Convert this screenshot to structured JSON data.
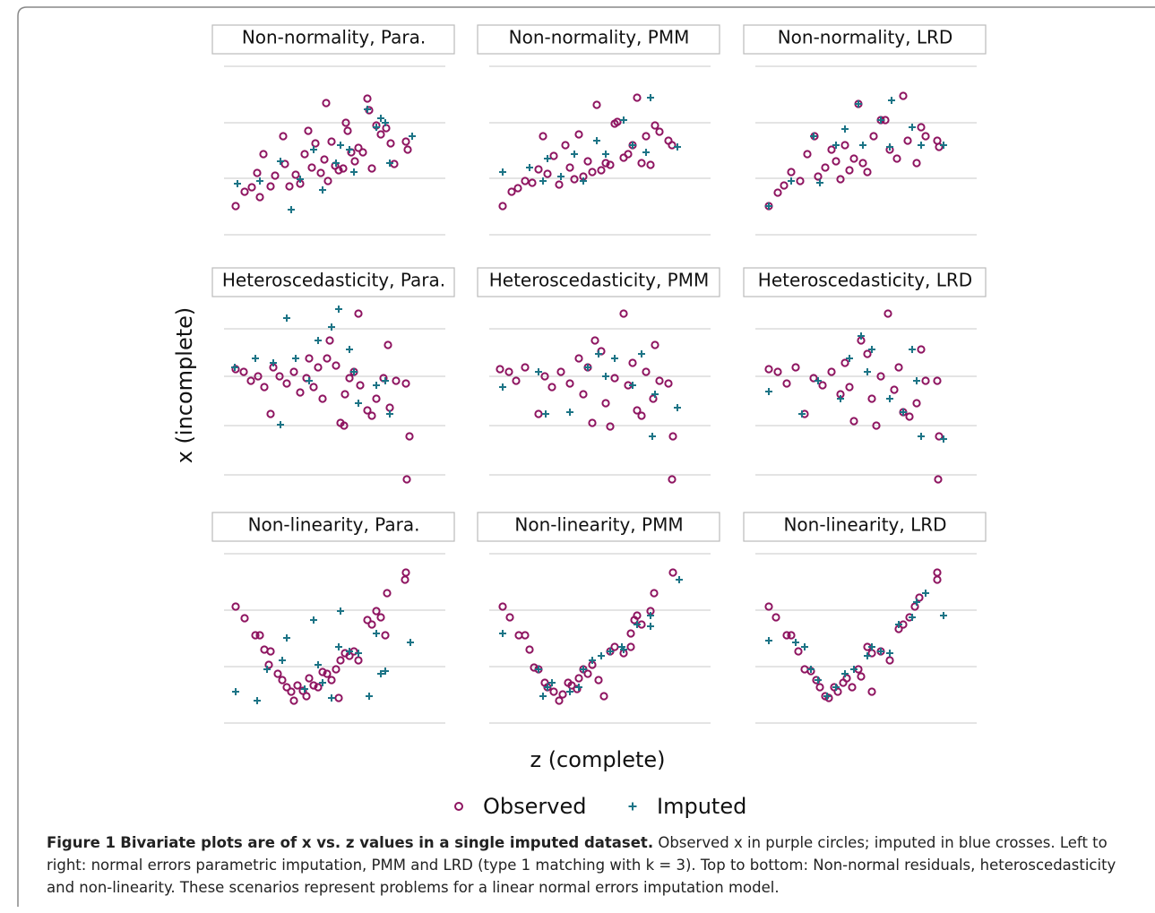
{
  "figure": {
    "y_label": "x (incomplete)",
    "x_label": "z (complete)",
    "legend": [
      {
        "name": "Observed",
        "color": "#8e1460",
        "marker": "circle"
      },
      {
        "name": "Imputed",
        "color": "#1c7486",
        "marker": "plus"
      }
    ],
    "caption": {
      "label": "Figure 1",
      "title": "Bivariate plots are of x vs. z values in a single imputed dataset.",
      "text": "Observed x in purple circles; imputed in blue crosses. Left to right: normal errors parametric imputation, PMM and LRD (type 1 matching with k = 3). Top to bottom: Non-normal residuals, heteroscedasticity and non-linearity. These scenarios represent problems for a linear normal errors imputation model."
    }
  },
  "chart_data": [
    {
      "type": "scatter",
      "title": "Non-normality, Para.",
      "xlim": [
        0,
        247
      ],
      "ylim": [
        0,
        188
      ],
      "yticks": [
        0,
        63,
        125,
        188
      ],
      "grid": true,
      "series": [
        {
          "x": [
            13,
            23,
            31,
            37,
            40,
            44,
            52,
            57,
            66,
            68,
            73,
            80,
            85,
            90,
            94,
            98,
            102,
            108,
            112,
            114,
            116,
            120,
            124,
            128,
            133,
            136,
            138,
            142,
            146,
            150,
            155,
            160,
            162,
            165,
            170,
            175,
            181,
            186,
            190,
            203,
            205
          ],
          "values": [
            32,
            48,
            53,
            69,
            42,
            90,
            54,
            66,
            110,
            79,
            54,
            67,
            57,
            90,
            116,
            75,
            102,
            69,
            84,
            147,
            60,
            104,
            77,
            72,
            74,
            125,
            116,
            92,
            82,
            97,
            92,
            152,
            139,
            74,
            122,
            112,
            119,
            102,
            79,
            104,
            95
          ]
        },
        {
          "x": [
            15,
            40,
            63,
            75,
            85,
            100,
            110,
            125,
            130,
            145,
            160,
            170,
            180,
            185,
            210,
            175,
            140
          ],
          "values": [
            57,
            60,
            82,
            28,
            62,
            95,
            50,
            80,
            100,
            70,
            140,
            120,
            125,
            80,
            110,
            130,
            95
          ]
        }
      ]
    },
    {
      "type": "scatter",
      "title": "Non-normality, PMM",
      "xlim": [
        0,
        247
      ],
      "ylim": [
        0,
        188
      ],
      "yticks": [
        0,
        63,
        125,
        188
      ],
      "grid": true,
      "series": [
        {
          "x": [
            15,
            25,
            32,
            40,
            48,
            55,
            60,
            65,
            72,
            78,
            85,
            90,
            95,
            100,
            105,
            110,
            115,
            120,
            125,
            130,
            135,
            140,
            143,
            150,
            155,
            160,
            165,
            170,
            175,
            180,
            185,
            190,
            200,
            204
          ],
          "values": [
            32,
            48,
            52,
            60,
            58,
            73,
            110,
            68,
            88,
            56,
            100,
            75,
            62,
            112,
            65,
            82,
            70,
            145,
            72,
            80,
            78,
            124,
            126,
            86,
            90,
            100,
            153,
            80,
            110,
            78,
            122,
            115,
            105,
            100
          ]
        },
        {
          "x": [
            15,
            45,
            65,
            80,
            95,
            105,
            120,
            130,
            150,
            160,
            180,
            175,
            210,
            60
          ],
          "values": [
            70,
            75,
            85,
            65,
            90,
            60,
            105,
            90,
            128,
            100,
            153,
            92,
            98,
            60
          ]
        }
      ]
    },
    {
      "type": "scatter",
      "title": "Non-normality, LRD",
      "xlim": [
        0,
        247
      ],
      "ylim": [
        0,
        188
      ],
      "yticks": [
        0,
        63,
        125,
        188
      ],
      "grid": true,
      "series": [
        {
          "x": [
            15,
            25,
            32,
            40,
            50,
            58,
            66,
            70,
            78,
            85,
            90,
            95,
            100,
            105,
            110,
            115,
            120,
            125,
            132,
            140,
            145,
            150,
            158,
            165,
            170,
            180,
            185,
            190,
            203,
            205
          ],
          "values": [
            32,
            47,
            55,
            70,
            60,
            90,
            110,
            65,
            75,
            95,
            82,
            62,
            100,
            72,
            85,
            146,
            80,
            70,
            110,
            128,
            128,
            95,
            85,
            155,
            105,
            80,
            120,
            110,
            105,
            98
          ]
        },
        {
          "x": [
            15,
            40,
            65,
            72,
            90,
            100,
            115,
            120,
            140,
            150,
            152,
            175,
            185,
            210
          ],
          "values": [
            32,
            60,
            110,
            58,
            100,
            118,
            146,
            100,
            128,
            98,
            150,
            120,
            100,
            100
          ]
        }
      ]
    },
    {
      "type": "scatter",
      "title": "Heteroscedasticity, Para.",
      "xlim": [
        0,
        247
      ],
      "ylim": [
        0,
        200
      ],
      "yticks": [
        10,
        65,
        120,
        173
      ],
      "grid": true,
      "series": [
        {
          "x": [
            13,
            22,
            30,
            38,
            45,
            52,
            55,
            62,
            70,
            78,
            85,
            92,
            95,
            100,
            105,
            110,
            115,
            118,
            125,
            130,
            134,
            135,
            140,
            145,
            150,
            152,
            160,
            165,
            170,
            178,
            183,
            185,
            192,
            203,
            207,
            204
          ],
          "values": [
            128,
            125,
            115,
            120,
            108,
            78,
            130,
            120,
            112,
            125,
            102,
            118,
            140,
            108,
            130,
            95,
            140,
            160,
            132,
            68,
            65,
            100,
            118,
            125,
            190,
            110,
            82,
            76,
            95,
            118,
            155,
            85,
            115,
            112,
            53,
            5
          ]
        },
        {
          "x": [
            12,
            35,
            55,
            63,
            70,
            80,
            95,
            105,
            120,
            128,
            140,
            150,
            170,
            185,
            180,
            145
          ],
          "values": [
            130,
            140,
            135,
            66,
            185,
            140,
            115,
            160,
            175,
            195,
            150,
            90,
            110,
            78,
            115,
            125
          ]
        }
      ]
    },
    {
      "type": "scatter",
      "title": "Heteroscedasticity, PMM",
      "xlim": [
        0,
        247
      ],
      "ylim": [
        0,
        200
      ],
      "yticks": [
        10,
        65,
        120,
        173
      ],
      "grid": true,
      "series": [
        {
          "x": [
            12,
            22,
            30,
            40,
            55,
            62,
            70,
            80,
            90,
            100,
            105,
            110,
            115,
            118,
            125,
            130,
            135,
            140,
            150,
            155,
            160,
            165,
            170,
            175,
            185,
            190,
            200,
            205,
            204,
            183
          ],
          "values": [
            128,
            125,
            115,
            130,
            78,
            120,
            108,
            125,
            112,
            140,
            100,
            130,
            68,
            160,
            148,
            90,
            64,
            118,
            190,
            110,
            135,
            82,
            76,
            125,
            155,
            115,
            112,
            53,
            5,
            95
          ]
        },
        {
          "x": [
            15,
            63,
            90,
            110,
            122,
            130,
            140,
            160,
            170,
            185,
            210,
            182,
            55
          ],
          "values": [
            108,
            78,
            80,
            130,
            145,
            120,
            140,
            110,
            145,
            100,
            85,
            53,
            125
          ]
        }
      ]
    },
    {
      "type": "scatter",
      "title": "Heteroscedasticity, LRD",
      "xlim": [
        0,
        247
      ],
      "ylim": [
        0,
        200
      ],
      "yticks": [
        10,
        65,
        120,
        173
      ],
      "grid": true,
      "series": [
        {
          "x": [
            15,
            25,
            35,
            45,
            55,
            65,
            75,
            85,
            95,
            100,
            105,
            110,
            118,
            125,
            130,
            135,
            140,
            148,
            155,
            160,
            165,
            172,
            180,
            185,
            190,
            203,
            205,
            204
          ],
          "values": [
            128,
            125,
            112,
            130,
            78,
            118,
            110,
            125,
            100,
            135,
            108,
            70,
            160,
            145,
            95,
            65,
            120,
            190,
            105,
            130,
            80,
            75,
            90,
            150,
            115,
            115,
            53,
            5
          ]
        },
        {
          "x": [
            15,
            52,
            70,
            95,
            105,
            118,
            125,
            130,
            150,
            165,
            175,
            180,
            210,
            185
          ],
          "values": [
            103,
            78,
            115,
            95,
            140,
            165,
            125,
            150,
            95,
            80,
            150,
            115,
            50,
            53
          ]
        }
      ]
    },
    {
      "type": "scatter",
      "title": "Non-linearity, Para.",
      "xlim": [
        0,
        247
      ],
      "ylim": [
        0,
        189
      ],
      "yticks": [
        0,
        63,
        126,
        189
      ],
      "grid": true,
      "series": [
        {
          "x": [
            13,
            23,
            35,
            40,
            45,
            50,
            52,
            60,
            65,
            70,
            75,
            78,
            82,
            88,
            92,
            95,
            100,
            105,
            110,
            115,
            120,
            125,
            128,
            130,
            135,
            140,
            145,
            150,
            160,
            165,
            170,
            175,
            182,
            203,
            202,
            180
          ],
          "values": [
            130,
            117,
            98,
            98,
            82,
            65,
            80,
            55,
            48,
            40,
            35,
            25,
            42,
            36,
            30,
            50,
            42,
            40,
            57,
            55,
            48,
            60,
            28,
            70,
            78,
            75,
            80,
            70,
            115,
            110,
            125,
            118,
            145,
            168,
            160,
            98
          ]
        },
        {
          "x": [
            13,
            37,
            48,
            65,
            70,
            90,
            100,
            105,
            110,
            120,
            128,
            130,
            140,
            150,
            162,
            170,
            175,
            180,
            208
          ],
          "values": [
            35,
            25,
            60,
            70,
            95,
            38,
            115,
            65,
            45,
            28,
            85,
            125,
            80,
            78,
            30,
            100,
            55,
            58,
            90
          ]
        }
      ]
    },
    {
      "type": "scatter",
      "title": "Non-linearity, PMM",
      "xlim": [
        0,
        247
      ],
      "ylim": [
        0,
        189
      ],
      "yticks": [
        0,
        63,
        126,
        189
      ],
      "grid": true,
      "series": [
        {
          "x": [
            15,
            23,
            33,
            40,
            45,
            50,
            55,
            62,
            65,
            72,
            78,
            82,
            88,
            92,
            98,
            100,
            105,
            110,
            115,
            122,
            128,
            135,
            140,
            150,
            158,
            162,
            170,
            180,
            184,
            205,
            165,
            158
          ],
          "values": [
            130,
            118,
            98,
            98,
            82,
            62,
            60,
            45,
            40,
            35,
            25,
            32,
            45,
            42,
            38,
            50,
            60,
            55,
            65,
            48,
            30,
            80,
            85,
            78,
            100,
            115,
            110,
            125,
            145,
            168,
            120,
            85
          ]
        },
        {
          "x": [
            15,
            55,
            65,
            70,
            90,
            100,
            105,
            115,
            125,
            135,
            148,
            150,
            165,
            180,
            212,
            60,
            180
          ],
          "values": [
            100,
            60,
            40,
            45,
            35,
            40,
            60,
            70,
            75,
            80,
            85,
            82,
            110,
            120,
            160,
            30,
            108
          ]
        }
      ]
    },
    {
      "type": "scatter",
      "title": "Non-linearity, LRD",
      "xlim": [
        0,
        247
      ],
      "ylim": [
        0,
        189
      ],
      "yticks": [
        0,
        63,
        126,
        189
      ],
      "grid": true,
      "series": [
        {
          "x": [
            15,
            23,
            35,
            40,
            48,
            55,
            62,
            68,
            72,
            78,
            82,
            88,
            92,
            98,
            102,
            108,
            115,
            118,
            125,
            130,
            140,
            150,
            160,
            165,
            172,
            178,
            183,
            203,
            203,
            130
          ],
          "values": [
            130,
            118,
            98,
            98,
            80,
            60,
            58,
            48,
            40,
            30,
            28,
            40,
            35,
            45,
            50,
            40,
            60,
            52,
            85,
            78,
            80,
            70,
            105,
            110,
            118,
            130,
            140,
            168,
            160,
            35
          ]
        },
        {
          "x": [
            15,
            45,
            55,
            62,
            70,
            80,
            90,
            100,
            110,
            125,
            130,
            140,
            150,
            160,
            175,
            180,
            210,
            190
          ],
          "values": [
            92,
            90,
            85,
            60,
            48,
            30,
            40,
            55,
            60,
            75,
            85,
            80,
            78,
            110,
            118,
            135,
            120,
            145
          ]
        }
      ]
    }
  ]
}
